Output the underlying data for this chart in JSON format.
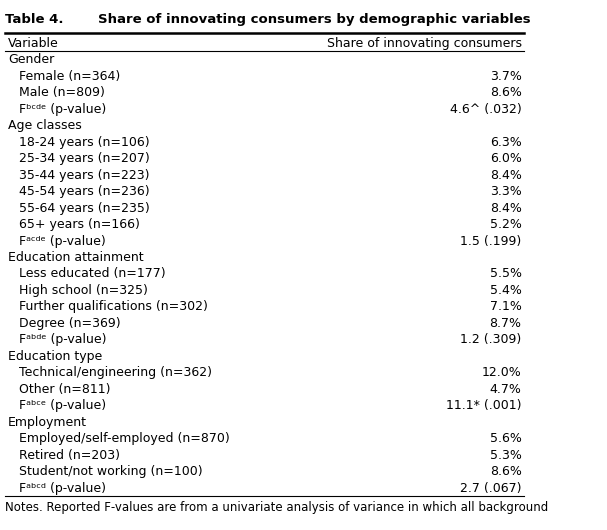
{
  "title": "Table 4.",
  "title_text": "Share of innovating consumers by demographic variables",
  "col1_header": "Variable",
  "col2_header": "Share of innovating consumers",
  "rows": [
    {
      "label": "Gender",
      "value": "",
      "indent": 0,
      "section": true
    },
    {
      "label": "Female (n=364)",
      "value": "3.7%",
      "indent": 1,
      "section": false
    },
    {
      "label": "Male (n=809)",
      "value": "8.6%",
      "indent": 1,
      "section": false
    },
    {
      "label": "Fᵇᶜᵈᵉ (p-value)",
      "value": "4.6^ (.032)",
      "indent": 1,
      "section": false
    },
    {
      "label": "Age classes",
      "value": "",
      "indent": 0,
      "section": true
    },
    {
      "label": "18-24 years (n=106)",
      "value": "6.3%",
      "indent": 1,
      "section": false
    },
    {
      "label": "25-34 years (n=207)",
      "value": "6.0%",
      "indent": 1,
      "section": false
    },
    {
      "label": "35-44 years (n=223)",
      "value": "8.4%",
      "indent": 1,
      "section": false
    },
    {
      "label": "45-54 years (n=236)",
      "value": "3.3%",
      "indent": 1,
      "section": false
    },
    {
      "label": "55-64 years (n=235)",
      "value": "8.4%",
      "indent": 1,
      "section": false
    },
    {
      "label": "65+ years (n=166)",
      "value": "5.2%",
      "indent": 1,
      "section": false
    },
    {
      "label": "Fᵃᶜᵈᵉ (p-value)",
      "value": "1.5 (.199)",
      "indent": 1,
      "section": false
    },
    {
      "label": "Education attainment",
      "value": "",
      "indent": 0,
      "section": true
    },
    {
      "label": "Less educated (n=177)",
      "value": "5.5%",
      "indent": 1,
      "section": false
    },
    {
      "label": "High school (n=325)",
      "value": "5.4%",
      "indent": 1,
      "section": false
    },
    {
      "label": "Further qualifications (n=302)",
      "value": "7.1%",
      "indent": 1,
      "section": false
    },
    {
      "label": "Degree (n=369)",
      "value": "8.7%",
      "indent": 1,
      "section": false
    },
    {
      "label": "Fᵃᵇᵈᵉ (p-value)",
      "value": "1.2 (.309)",
      "indent": 1,
      "section": false
    },
    {
      "label": "Education type",
      "value": "",
      "indent": 0,
      "section": true
    },
    {
      "label": "Technical/engineering (n=362)",
      "value": "12.0%",
      "indent": 1,
      "section": false
    },
    {
      "label": "Other (n=811)",
      "value": "4.7%",
      "indent": 1,
      "section": false
    },
    {
      "label": "Fᵃᵇᶜᵉ (p-value)",
      "value": "11.1* (.001)",
      "indent": 1,
      "section": false
    },
    {
      "label": "Employment",
      "value": "",
      "indent": 0,
      "section": true
    },
    {
      "label": "Employed/self-employed (n=870)",
      "value": "5.6%",
      "indent": 1,
      "section": false
    },
    {
      "label": "Retired (n=203)",
      "value": "5.3%",
      "indent": 1,
      "section": false
    },
    {
      "label": "Student/not working (n=100)",
      "value": "8.6%",
      "indent": 1,
      "section": false
    },
    {
      "label": "Fᵃᵇᶜᵈ (p-value)",
      "value": "2.7 (.067)",
      "indent": 1,
      "section": false
    }
  ],
  "notes": "Notes. Reported F-values are from a univariate analysis of variance in which all background",
  "background_color": "#ffffff",
  "line_color": "#000000",
  "font_size": 9,
  "title_font_size": 9.5
}
